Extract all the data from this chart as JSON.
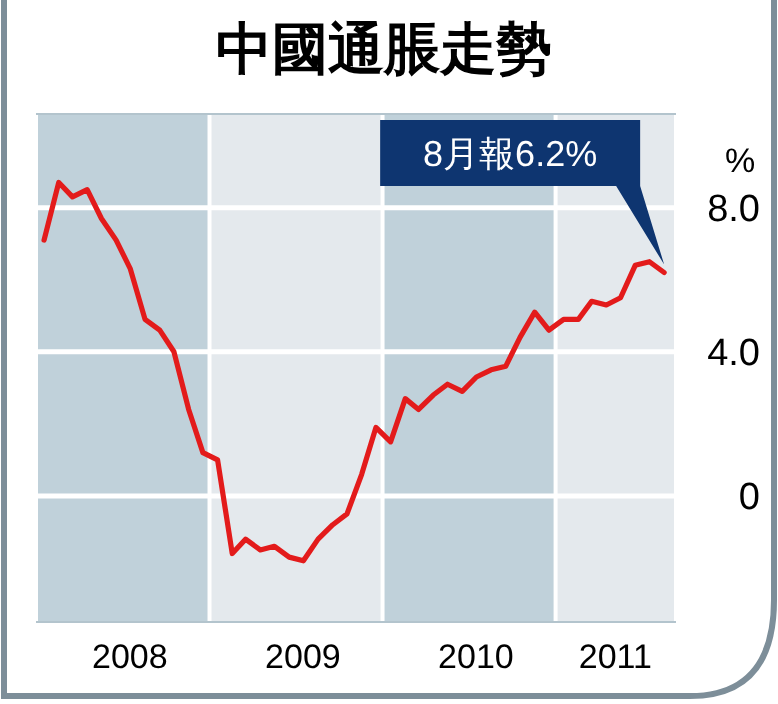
{
  "chart_data": {
    "type": "line",
    "title": "中國通脹走勢",
    "ylabel": "%",
    "x": [
      "2008-01",
      "2008-02",
      "2008-03",
      "2008-04",
      "2008-05",
      "2008-06",
      "2008-07",
      "2008-08",
      "2008-09",
      "2008-10",
      "2008-11",
      "2008-12",
      "2009-01",
      "2009-02",
      "2009-03",
      "2009-04",
      "2009-05",
      "2009-06",
      "2009-07",
      "2009-08",
      "2009-09",
      "2009-10",
      "2009-11",
      "2009-12",
      "2010-01",
      "2010-02",
      "2010-03",
      "2010-04",
      "2010-05",
      "2010-06",
      "2010-07",
      "2010-08",
      "2010-09",
      "2010-10",
      "2010-11",
      "2010-12",
      "2011-01",
      "2011-02",
      "2011-03",
      "2011-04",
      "2011-05",
      "2011-06",
      "2011-07",
      "2011-08"
    ],
    "series": [
      {
        "color": "#e31b1b",
        "values": [
          7.1,
          8.7,
          8.3,
          8.5,
          7.7,
          7.1,
          6.3,
          4.9,
          4.6,
          4.0,
          2.4,
          1.2,
          1.0,
          -1.6,
          -1.2,
          -1.5,
          -1.4,
          -1.7,
          -1.8,
          -1.2,
          -0.8,
          -0.5,
          0.6,
          1.9,
          1.5,
          2.7,
          2.4,
          2.8,
          3.1,
          2.9,
          3.3,
          3.5,
          3.6,
          4.4,
          5.1,
          4.6,
          4.9,
          4.9,
          5.4,
          5.3,
          5.5,
          6.4,
          6.5,
          6.2
        ]
      }
    ],
    "xlim": [
      "2007-12-15",
      "2011-08-26"
    ],
    "xticks": [
      {
        "value": "2008-06-30",
        "label": "2008"
      },
      {
        "value": "2009-06-30",
        "label": "2009"
      },
      {
        "value": "2010-06-30",
        "label": "2010"
      },
      {
        "value": "2011-04-20",
        "label": "2011"
      }
    ],
    "ylim": [
      -3.5,
      10.6
    ],
    "yticks": [
      {
        "value": 8,
        "label": "8.0"
      },
      {
        "value": 4,
        "label": "4.0"
      },
      0
    ],
    "grid": "y",
    "marker": "none",
    "line_style": "solid",
    "bands": [
      {
        "axis": "x",
        "from": "2007-12-15",
        "to": "2008-12-15",
        "color": "#c0d1da"
      },
      {
        "axis": "x",
        "from": "2008-12-15",
        "to": "2009-12-15",
        "color": "#e4e9ed"
      },
      {
        "axis": "x",
        "from": "2009-12-15",
        "to": "2010-12-15",
        "color": "#c0d1da"
      },
      {
        "axis": "x",
        "from": "2010-12-15",
        "to": "2011-08-26",
        "color": "#e4e9ed"
      }
    ],
    "annotations": [
      "8月報6.2%"
    ]
  }
}
